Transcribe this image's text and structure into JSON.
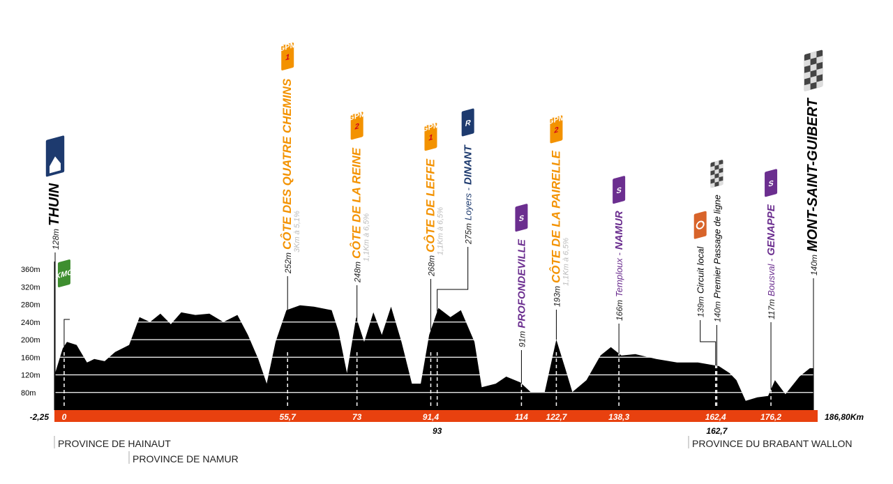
{
  "chart_data": {
    "type": "area",
    "color": "#000000",
    "x": [
      -2.25,
      -0.35,
      0.7,
      3.1,
      5.7,
      7.5,
      10.1,
      12.7,
      16.2,
      18.8,
      21.4,
      24,
      26.6,
      29.2,
      32.7,
      36.2,
      39.7,
      43.2,
      45.8,
      48.4,
      50.5,
      52.7,
      55.4,
      58.8,
      62.3,
      66.7,
      68.4,
      70.5,
      72.8,
      74.8,
      77.1,
      79.2,
      81.5,
      84.1,
      86.7,
      88.9,
      91,
      93.3,
      96.3,
      98.9,
      102.3,
      104.1,
      107.6,
      110.2,
      113.7,
      116.3,
      119.8,
      122.7,
      125,
      126.7,
      130.2,
      133.7,
      136.3,
      138.9,
      142.4,
      147.6,
      152.8,
      158,
      163.2,
      165.9,
      167.6,
      169.9,
      172.8,
      175.5,
      177.2,
      179.8,
      183.3,
      185.9,
      186.8
    ],
    "values": [
      124,
      180,
      195,
      188,
      148,
      156,
      151,
      172,
      188,
      251,
      240,
      259,
      235,
      262,
      256,
      259,
      240,
      256,
      211,
      156,
      100,
      195,
      267,
      278,
      275,
      267,
      219,
      124,
      251,
      195,
      262,
      211,
      275,
      195,
      100,
      100,
      211,
      272,
      251,
      267,
      195,
      92,
      100,
      116,
      103,
      81,
      81,
      200,
      132,
      81,
      108,
      164,
      183,
      164,
      167,
      156,
      148,
      148,
      140,
      124,
      108,
      61,
      69,
      72,
      108,
      76,
      116,
      135,
      135
    ],
    "xlim": [
      -2.25,
      186.8
    ],
    "ylim": [
      40,
      360
    ],
    "yticks": [
      {
        "value": 80,
        "label": "80m"
      },
      {
        "value": 120,
        "label": "120m"
      },
      {
        "value": 160,
        "label": "160m"
      },
      {
        "value": 200,
        "label": "200m"
      },
      {
        "value": 240,
        "label": "240m"
      },
      {
        "value": 280,
        "label": "280m"
      },
      {
        "value": 320,
        "label": "320m"
      },
      {
        "value": 360,
        "label": "360m"
      }
    ],
    "xticks": [
      {
        "value": -2.25,
        "label": "-2,25"
      },
      {
        "value": 0,
        "label": "0"
      },
      {
        "value": 55.7,
        "label": "55,7"
      },
      {
        "value": 73,
        "label": "73"
      },
      {
        "value": 91.4,
        "label": "91,4"
      },
      {
        "value": 93,
        "label": "93"
      },
      {
        "value": 114,
        "label": "114"
      },
      {
        "value": 122.7,
        "label": "122,7"
      },
      {
        "value": 138.3,
        "label": "138,3"
      },
      {
        "value": 162.4,
        "label": "162,4"
      },
      {
        "value": 162.7,
        "label": "162,7"
      },
      {
        "value": 176.2,
        "label": "176,2"
      },
      {
        "value": 186.8,
        "label": "186,80Km"
      }
    ],
    "grid": true,
    "annotations": [
      {
        "x": -2.25,
        "alt": "128m",
        "name": "THUIN",
        "color": "#000000",
        "badge_color": "#1d3a6e"
      },
      {
        "x": 0,
        "badge": "KMO",
        "badge_color": "#3e8e2f"
      },
      {
        "x": 55.7,
        "alt": "252m",
        "name": "CÔTE DES QUATRE CHEMINS",
        "detail": "3Km à 5,1%",
        "color": "#f39200",
        "badge": "1",
        "badge_note": "GPM",
        "badge_color": "#f39200"
      },
      {
        "x": 73,
        "alt": "248m",
        "name": "CÔTE DE LA REINE",
        "detail": "1,1Km à 6,5%",
        "color": "#f39200",
        "badge": "2",
        "badge_note": "GPM",
        "badge_color": "#f39200"
      },
      {
        "x": 91.4,
        "alt": "268m",
        "name": "CÔTE DE LEFFE",
        "detail": "1,1Km à 6,5%",
        "color": "#f39200",
        "badge": "1",
        "badge_note": "GPM",
        "badge_color": "#f39200"
      },
      {
        "x": 93,
        "alt": "275m",
        "prefix": "Loyers -",
        "name": "DINANT",
        "color": "#1d3a6e",
        "badge": "R",
        "badge_color": "#1d3a6e"
      },
      {
        "x": 114,
        "alt": "91m",
        "name": "PROFONDEVILLE",
        "color": "#6b2e8f",
        "badge": "S",
        "badge_color": "#6b2e8f"
      },
      {
        "x": 122.7,
        "alt": "193m",
        "name": "CÔTE DE LA PAIRELLE",
        "detail": "1,1Km à 6,5%",
        "color": "#f39200",
        "badge": "2",
        "badge_note": "GPM",
        "badge_color": "#f39200"
      },
      {
        "x": 138.3,
        "alt": "166m",
        "prefix": "Temploux -",
        "name": "NAMUR",
        "color": "#6b2e8f",
        "badge": "S",
        "badge_color": "#6b2e8f"
      },
      {
        "x": 162.4,
        "alt": "139m",
        "prefix": "Circuit local",
        "color": "#000000",
        "badge_color": "#d8642a"
      },
      {
        "x": 162.7,
        "alt": "140m",
        "prefix": "Premier Passage de ligne",
        "color": "#000000",
        "badge_color": "#444444"
      },
      {
        "x": 176.2,
        "alt": "117m",
        "prefix": "Bousval -",
        "name": "GENAPPE",
        "color": "#6b2e8f",
        "badge": "S",
        "badge_color": "#6b2e8f"
      },
      {
        "x": 186.8,
        "alt": "140m",
        "name": "MONT-SAINT-GUIBERT",
        "color": "#000000",
        "badge_color": "#444444"
      }
    ],
    "regions": [
      "PROVINCE DE HAINAUT",
      "PROVINCE DE NAMUR",
      "PROVINCE DU BRABANT WALLON"
    ]
  }
}
